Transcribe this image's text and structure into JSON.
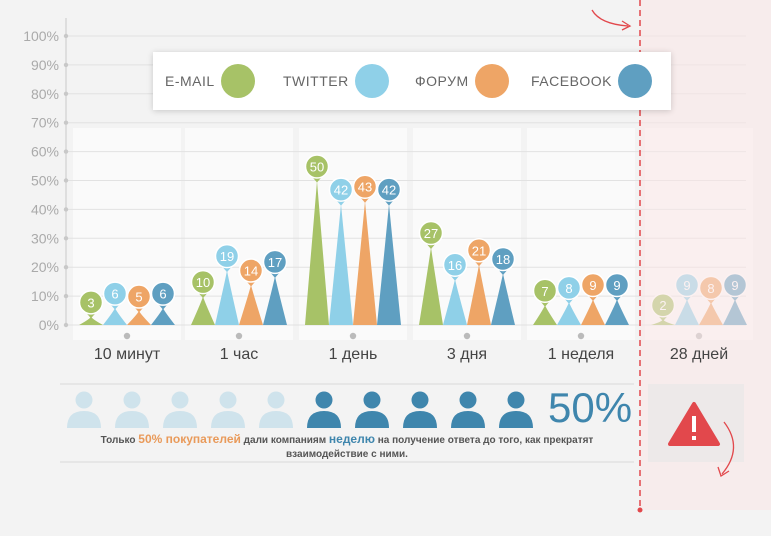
{
  "chart_data": {
    "type": "bar",
    "title": "",
    "xlabel": "",
    "ylabel": "",
    "ylim": [
      0,
      100
    ],
    "yticks": [
      "0%",
      "10%",
      "20%",
      "30%",
      "40%",
      "50%",
      "60%",
      "70%",
      "80%",
      "90%",
      "100%"
    ],
    "categories": [
      "10 минут",
      "1 час",
      "1 день",
      "3 дня",
      "1 неделя",
      "28 дней"
    ],
    "series": [
      {
        "name": "E-MAIL",
        "color": "#a7c267",
        "values": [
          3,
          10,
          50,
          27,
          7,
          2
        ]
      },
      {
        "name": "TWITTER",
        "color": "#8fd0e8",
        "values": [
          6,
          19,
          42,
          16,
          8,
          9
        ]
      },
      {
        "name": "ФОРУМ",
        "color": "#eea566",
        "values": [
          5,
          14,
          43,
          21,
          9,
          8
        ]
      },
      {
        "name": "FACEBOOK",
        "color": "#5f9fc1",
        "values": [
          6,
          17,
          42,
          18,
          9,
          9
        ]
      }
    ],
    "grid": true,
    "legend": "top"
  },
  "info": {
    "percent": "50%",
    "people_total": 10,
    "people_highlighted": 5,
    "caption_before": "Только ",
    "caption_hl1": "50% покупателей",
    "caption_mid": " дали компаниям ",
    "caption_hl2": "неделю",
    "caption_after": " на получение ответа до того, как прекратят взаимодействие с ними."
  },
  "icons": {
    "person": "person-icon",
    "warning": "warning-icon",
    "arrow": "curved-arrow-icon"
  },
  "colors": {
    "accent_red": "#e2484c",
    "person_light": "#cfe3ec",
    "person_dark": "#3f86ad"
  }
}
